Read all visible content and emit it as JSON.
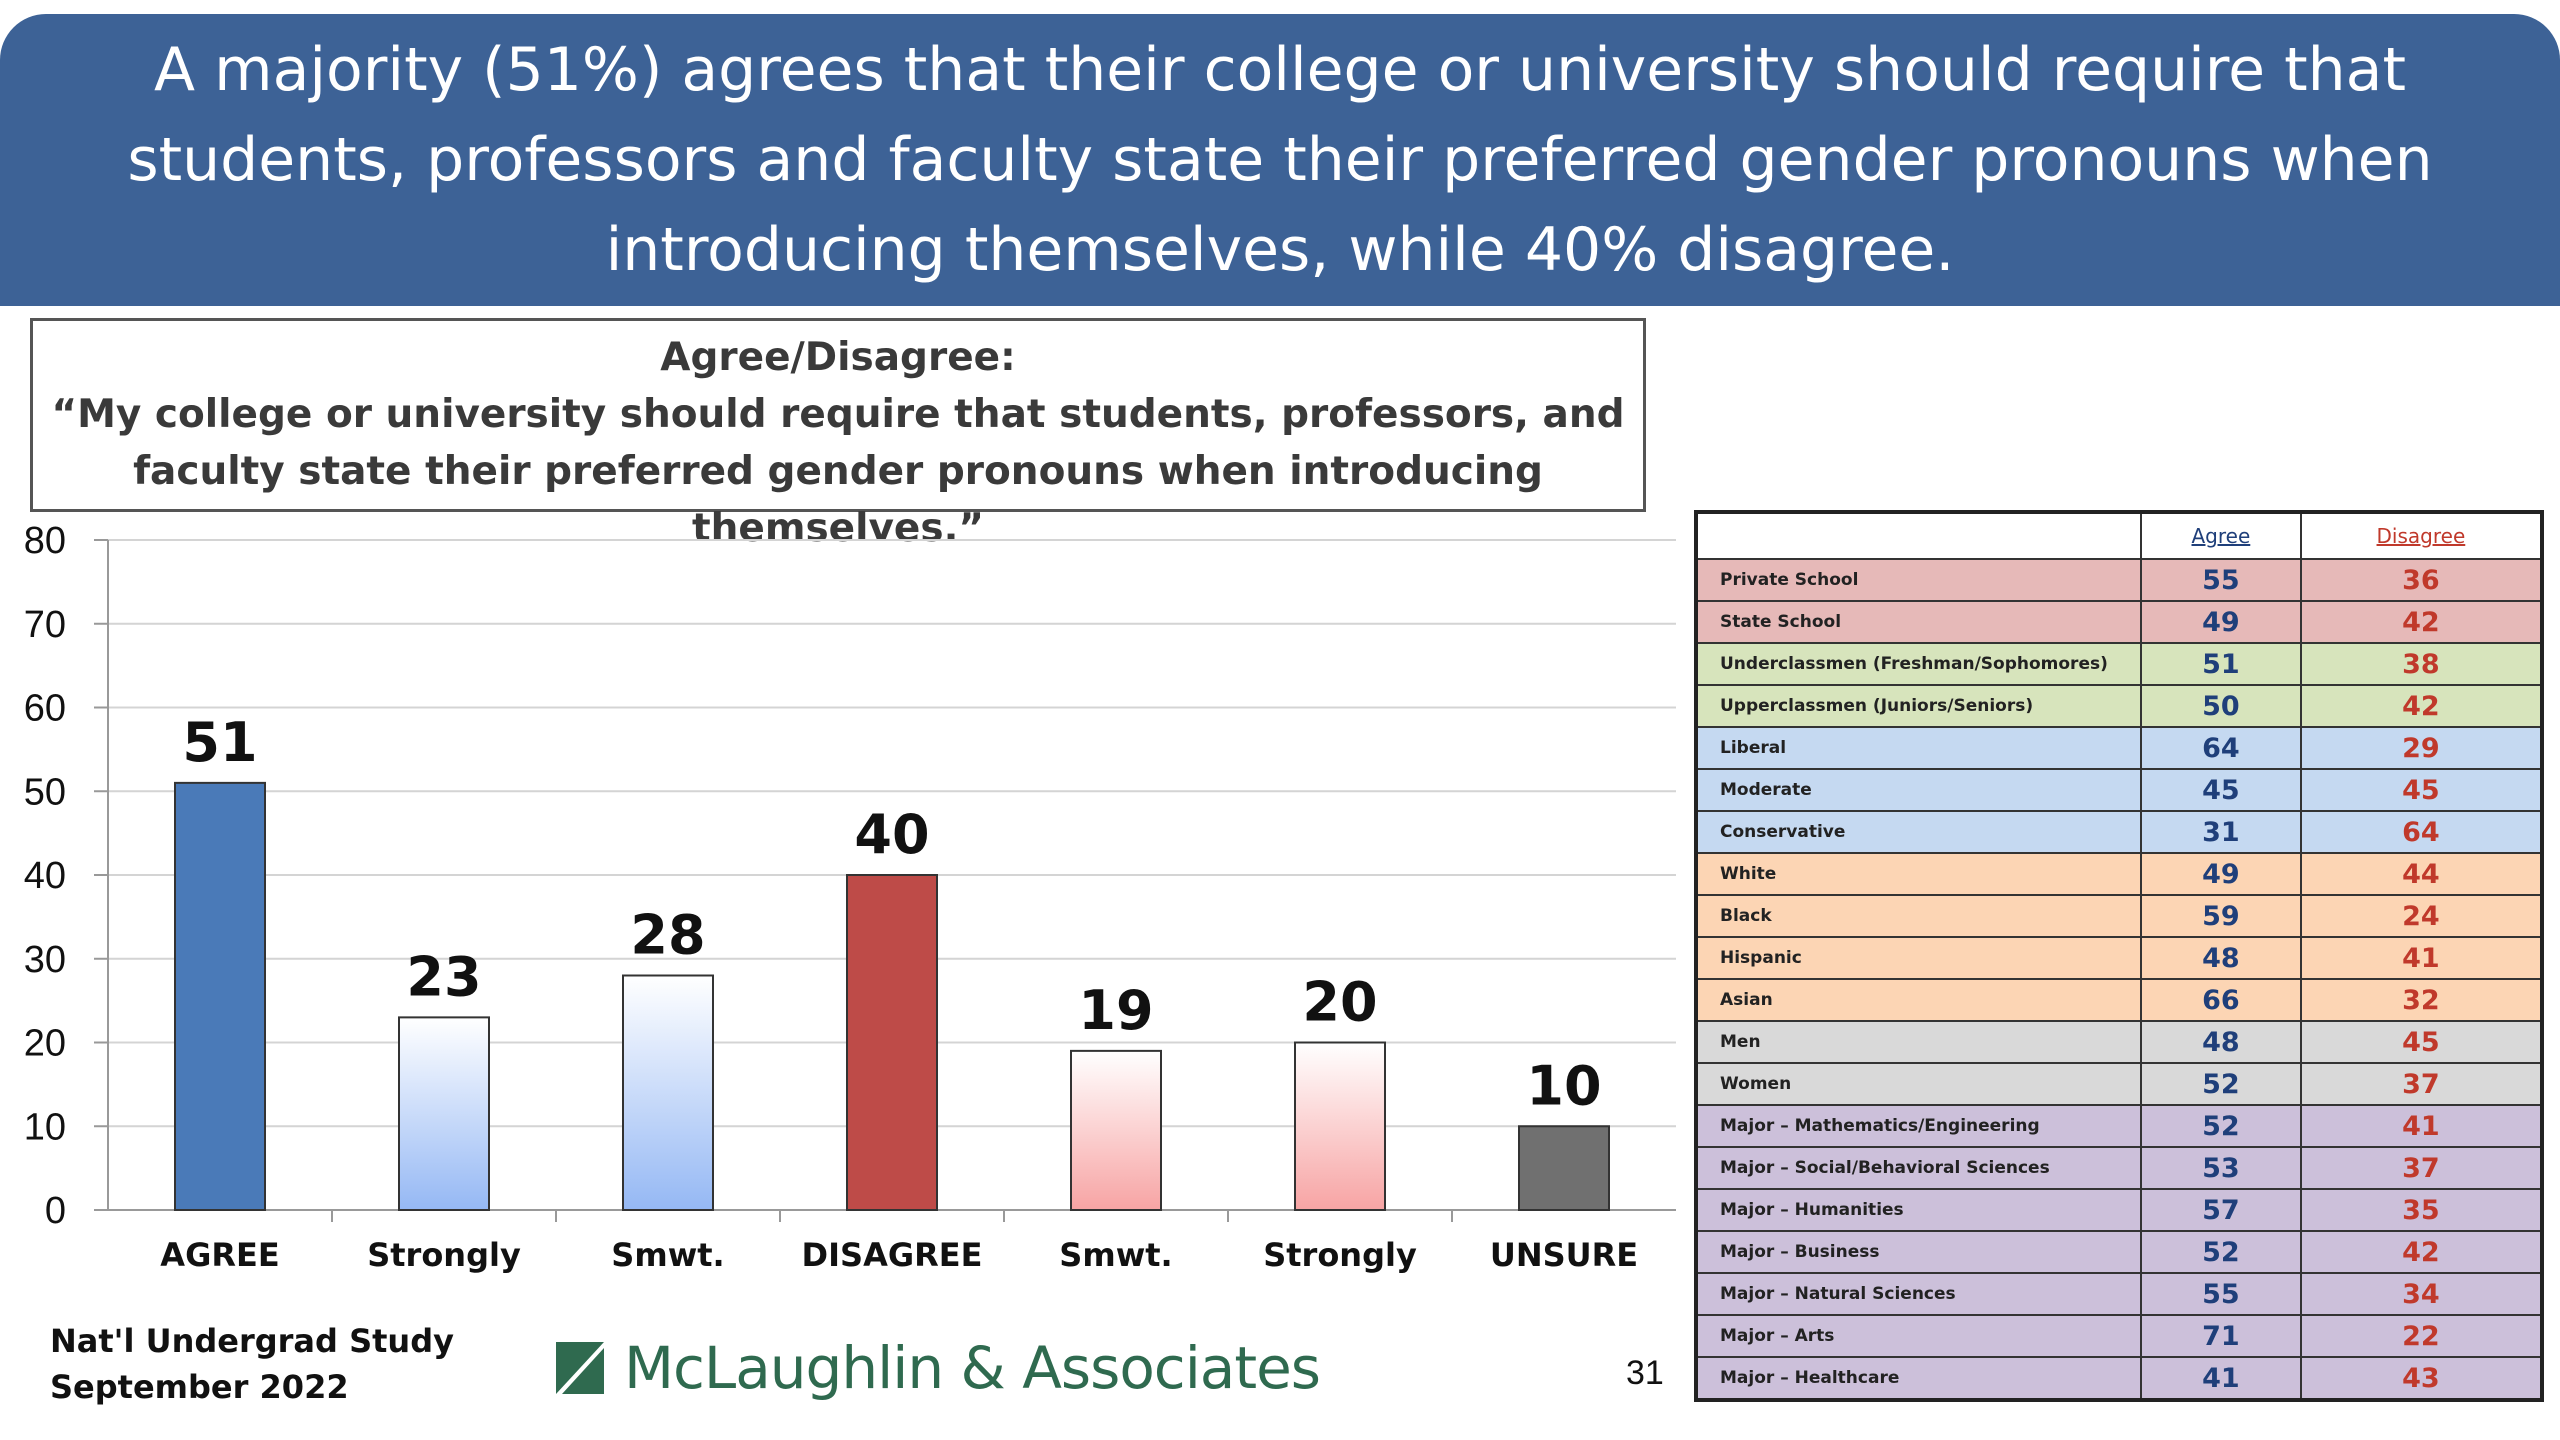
{
  "banner": {
    "title": "A majority (51%) agrees that their college or university should require that students, professors and faculty state their preferred gender pronouns when introducing themselves, while 40% disagree."
  },
  "question": {
    "heading": "Agree/Disagree:",
    "text": "“My college or university should require that students, professors, and faculty state their preferred gender pronouns when introducing themselves.”"
  },
  "chart_data": {
    "type": "bar",
    "categories": [
      "AGREE",
      "Strongly",
      "Smwt.",
      "DISAGREE",
      "Smwt.",
      "Strongly",
      "UNSURE"
    ],
    "values": [
      51,
      23,
      28,
      40,
      19,
      20,
      10
    ],
    "ylim": [
      0,
      80
    ],
    "yticks": [
      0,
      10,
      20,
      30,
      40,
      50,
      60,
      70,
      80
    ],
    "grid": true,
    "bar_colors": [
      "#4a7ab8",
      "#b8d0f5",
      "#b8d0f5",
      "#be4b48",
      "#f8c4c4",
      "#f8c4c4",
      "#707070"
    ]
  },
  "table": {
    "headers": [
      "",
      "Agree",
      "Disagree"
    ],
    "rows": [
      {
        "label": "Private School",
        "agree": "55",
        "disagree": "36",
        "bg": "#e6b9b8"
      },
      {
        "label": "State School",
        "agree": "49",
        "disagree": "42",
        "bg": "#e6b9b8"
      },
      {
        "label": "Underclassmen (Freshman/Sophomores)",
        "agree": "51",
        "disagree": "38",
        "bg": "#d7e4bc"
      },
      {
        "label": "Upperclassmen (Juniors/Seniors)",
        "agree": "50",
        "disagree": "42",
        "bg": "#d7e4bc"
      },
      {
        "label": "Liberal",
        "agree": "64",
        "disagree": "29",
        "bg": "#c5d9f1"
      },
      {
        "label": "Moderate",
        "agree": "45",
        "disagree": "45",
        "bg": "#c5d9f1"
      },
      {
        "label": "Conservative",
        "agree": "31",
        "disagree": "64",
        "bg": "#c5d9f1"
      },
      {
        "label": "White",
        "agree": "49",
        "disagree": "44",
        "bg": "#fcd5b4"
      },
      {
        "label": "Black",
        "agree": "59",
        "disagree": "24",
        "bg": "#fcd5b4"
      },
      {
        "label": "Hispanic",
        "agree": "48",
        "disagree": "41",
        "bg": "#fcd5b4"
      },
      {
        "label": "Asian",
        "agree": "66",
        "disagree": "32",
        "bg": "#fcd5b4"
      },
      {
        "label": "Men",
        "agree": "48",
        "disagree": "45",
        "bg": "#d9d9d9"
      },
      {
        "label": "Women",
        "agree": "52",
        "disagree": "37",
        "bg": "#d9d9d9"
      },
      {
        "label": "Major – Mathematics/Engineering",
        "agree": "52",
        "disagree": "41",
        "bg": "#ccc0da"
      },
      {
        "label": "Major – Social/Behavioral Sciences",
        "agree": "53",
        "disagree": "37",
        "bg": "#ccc0da"
      },
      {
        "label": "Major – Humanities",
        "agree": "57",
        "disagree": "35",
        "bg": "#ccc0da"
      },
      {
        "label": "Major – Business",
        "agree": "52",
        "disagree": "42",
        "bg": "#ccc0da"
      },
      {
        "label": "Major – Natural Sciences",
        "agree": "55",
        "disagree": "34",
        "bg": "#ccc0da"
      },
      {
        "label": "Major – Arts",
        "agree": "71",
        "disagree": "22",
        "bg": "#ccc0da"
      },
      {
        "label": "Major – Healthcare",
        "agree": "41",
        "disagree": "43",
        "bg": "#ccc0da"
      }
    ],
    "agree_color": "#1f3f7a",
    "disagree_color": "#c0392b"
  },
  "footer": {
    "study_line1": "Nat'l Undergrad Study",
    "study_line2": "September 2022",
    "logo_text": "McLaughlin & Associates",
    "page_number": "31"
  }
}
